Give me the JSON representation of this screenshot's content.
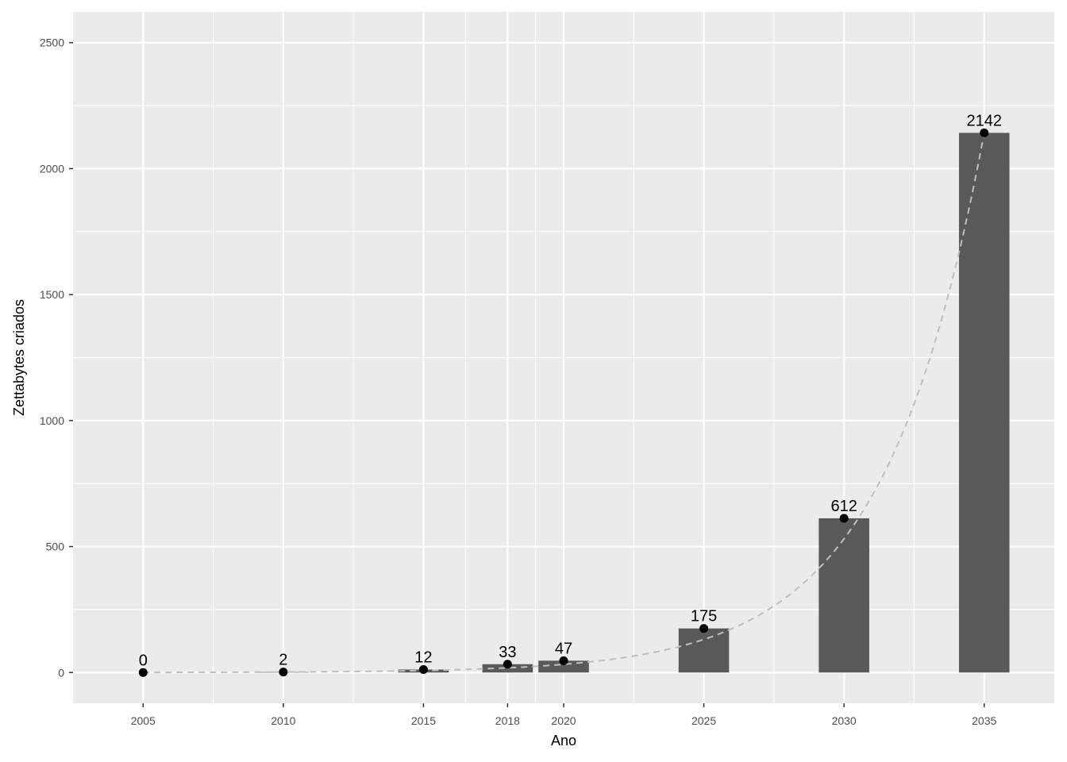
{
  "chart_data": {
    "type": "bar",
    "title": "",
    "xlabel": "Ano",
    "ylabel": "Zettabytes criados",
    "x": [
      2005,
      2010,
      2015,
      2018,
      2020,
      2025,
      2030,
      2035
    ],
    "values": [
      0,
      2,
      12,
      33,
      47,
      175,
      612,
      2142
    ],
    "labels": [
      "0",
      "2",
      "12",
      "33",
      "47",
      "175",
      "612",
      "2142"
    ],
    "x_ticks": [
      "2005",
      "2010",
      "2015",
      "2018",
      "2020",
      "2025",
      "2030",
      "2035"
    ],
    "y_ticks": [
      "0",
      "500",
      "1000",
      "1500",
      "2000",
      "2500"
    ],
    "xlim": [
      2002.5,
      2037.5
    ],
    "ylim": [
      -122,
      2622
    ],
    "overlays": [
      "points",
      "dashed exponential trend line"
    ],
    "grid": true,
    "legend": "none",
    "colors": {
      "panel_background": "#ebebeb",
      "bar": "#595959",
      "point": "#000000",
      "trend_line": "#bfbfbf",
      "grid": "#ffffff"
    }
  }
}
